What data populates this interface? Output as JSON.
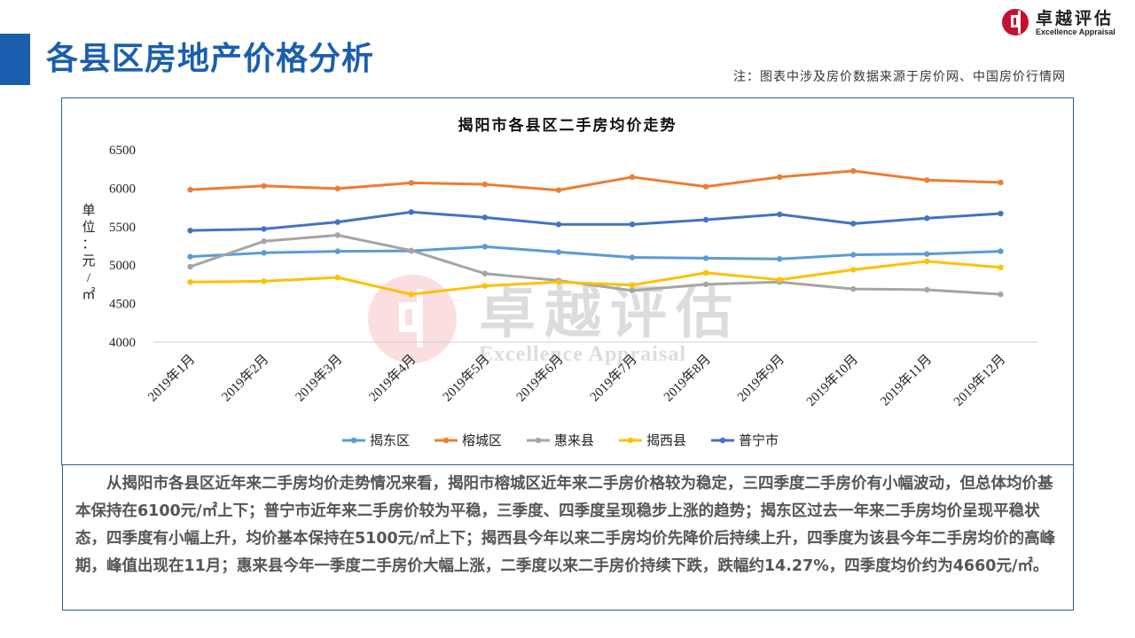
{
  "header": {
    "title": "各县区房地产价格分析",
    "note": "注：图表中涉及房价数据来源于房价网、中国房价行情网",
    "logo_name": "卓越评估",
    "logo_sub": "Excellence Appraisal"
  },
  "watermark": {
    "name": "卓越评估",
    "sub": "Excellence Appraisal"
  },
  "description": "从揭阳市各县区近年来二手房均价走势情况来看，揭阳市榕城区近年来二手房价格较为稳定，三四季度二手房价有小幅波动，但总体均价基本保持在6100元/㎡上下；普宁市近年来二手房价较为平稳，三季度、四季度呈现稳步上涨的趋势；揭东区过去一年来二手房均价呈现平稳状态，四季度有小幅上升，均价基本保持在5100元/㎡上下；揭西县今年以来二手房均价先降价后持续上升，四季度为该县今年二手房均价的高峰期，峰值出现在11月；惠来县今年一季度二手房价大幅上涨，二季度以来二手房价持续下跌，跌幅约14.27%，四季度均价约为4660元/㎡。",
  "chart_data": {
    "type": "line",
    "title": "揭阳市各县区二手房均价走势",
    "ylabel": "单位：元/㎡",
    "ylim": [
      4000,
      6500
    ],
    "yticks": [
      4000,
      4500,
      5000,
      5500,
      6000,
      6500
    ],
    "grid": true,
    "legend_position": "bottom",
    "categories": [
      "2019年1月",
      "2019年2月",
      "2019年3月",
      "2019年4月",
      "2019年5月",
      "2019年6月",
      "2019年7月",
      "2019年8月",
      "2019年9月",
      "2019年10月",
      "2019年11月",
      "2019年12月"
    ],
    "series": [
      {
        "name": "揭东区",
        "color": "#5b9bd5",
        "values": [
          5110,
          5160,
          5180,
          5185,
          5240,
          5170,
          5100,
          5090,
          5080,
          5135,
          5145,
          5180
        ]
      },
      {
        "name": "榕城区",
        "color": "#ed7d31",
        "values": [
          5980,
          6030,
          5995,
          6070,
          6050,
          5975,
          6145,
          6020,
          6145,
          6225,
          6105,
          6075
        ]
      },
      {
        "name": "惠来县",
        "color": "#a5a5a5",
        "values": [
          4980,
          5310,
          5390,
          5190,
          4890,
          4800,
          4670,
          4750,
          4780,
          4690,
          4680,
          4620
        ]
      },
      {
        "name": "揭西县",
        "color": "#ffc000",
        "values": [
          4780,
          4790,
          4840,
          4620,
          4730,
          4780,
          4740,
          4900,
          4810,
          4940,
          5050,
          4970
        ]
      },
      {
        "name": "普宁市",
        "color": "#4472c4",
        "values": [
          5450,
          5470,
          5560,
          5690,
          5620,
          5530,
          5530,
          5590,
          5660,
          5540,
          5610,
          5670
        ]
      }
    ]
  }
}
